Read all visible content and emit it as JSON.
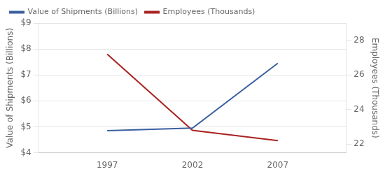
{
  "chart_data": {
    "type": "line",
    "x": [
      1997,
      2002,
      2007
    ],
    "series": [
      {
        "name": "Value of Shipments (Billions)",
        "color": "#3a5fa0",
        "values": [
          4.85,
          4.95,
          7.45
        ]
      },
      {
        "name": "Employees (Thousands)",
        "color": "#aa2222",
        "values": [
          27.2,
          22.8,
          22.2
        ],
        "axis": "y2"
      }
    ],
    "ylabel": "Value of Shipments (Billions)",
    "y2label": "Employees (Thousands)",
    "xlim": [
      1993,
      2011
    ],
    "xticks": [
      1997,
      2002,
      2007
    ],
    "ylim": [
      4,
      9
    ],
    "yticks": [
      {
        "value": 4,
        "label": "$4"
      },
      {
        "value": 5,
        "label": "$5"
      },
      {
        "value": 6,
        "label": "$6"
      },
      {
        "value": 7,
        "label": "$7"
      },
      {
        "value": 8,
        "label": "$8"
      },
      {
        "value": 9,
        "label": "$9"
      }
    ],
    "y2lim": [
      21.5,
      29
    ],
    "y2ticks": [
      22,
      24,
      26,
      28
    ],
    "grid": true,
    "legend": "top"
  }
}
